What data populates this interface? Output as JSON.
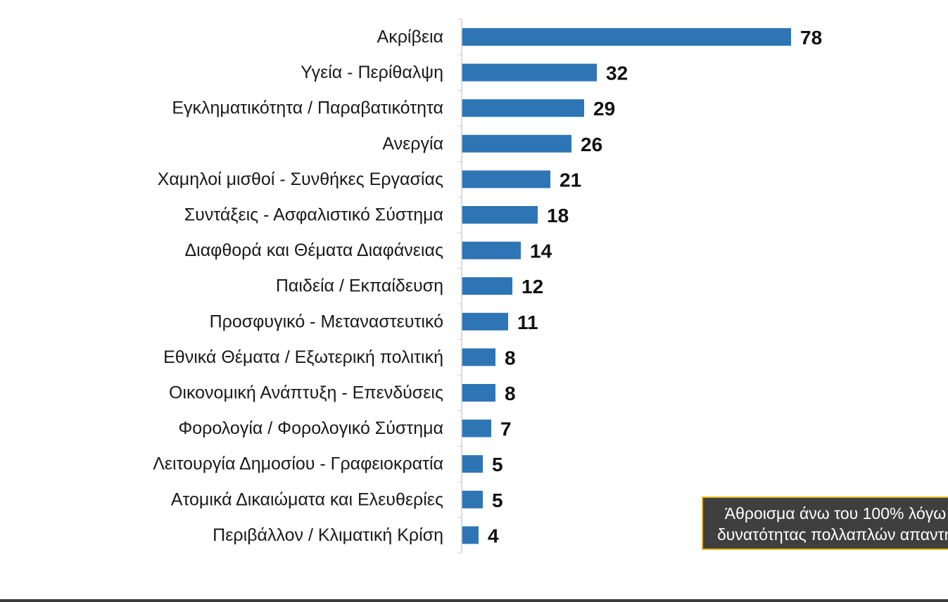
{
  "chart_data": {
    "type": "bar",
    "orientation": "horizontal",
    "categories": [
      "Ακρίβεια",
      "Υγεία - Περίθαλψη",
      "Εγκληματικότητα / Παραβατικότητα",
      "Ανεργία",
      "Χαμηλοί μισθοί - Συνθήκες Εργασίας",
      "Συντάξεις - Ασφαλιστικό Σύστημα",
      "Διαφθορά και Θέματα Διαφάνειας",
      "Παιδεία / Εκπαίδευση",
      "Προσφυγικό - Μεταναστευτικό",
      "Εθνικά Θέματα / Εξωτερική πολιτική",
      "Οικονομική Ανάπτυξη - Επενδύσεις",
      "Φορολογία / Φορολογικό Σύστημα",
      "Λειτουργία Δημοσίου - Γραφειοκρατία",
      "Ατομικά Δικαιώματα και Ελευθερίες",
      "Περιβάλλον / Κλιματική Κρίση"
    ],
    "values": [
      78,
      32,
      29,
      26,
      21,
      18,
      14,
      12,
      11,
      8,
      8,
      7,
      5,
      5,
      4
    ],
    "data_labels": [
      "78",
      "32",
      "29",
      "26",
      "21",
      "18",
      "14",
      "12",
      "11",
      "8",
      "8",
      "7",
      "5",
      "5",
      "4"
    ],
    "title": "",
    "xlabel": "",
    "ylabel": "",
    "xlim": [
      0,
      80
    ],
    "grid": false,
    "legend": "none",
    "bar_color": "#2e75b6"
  },
  "note": {
    "line1": "Άθροισμα άνω του 100% λόγω",
    "line2": "δυνατότητας πολλαπλών απαντήσεων"
  }
}
